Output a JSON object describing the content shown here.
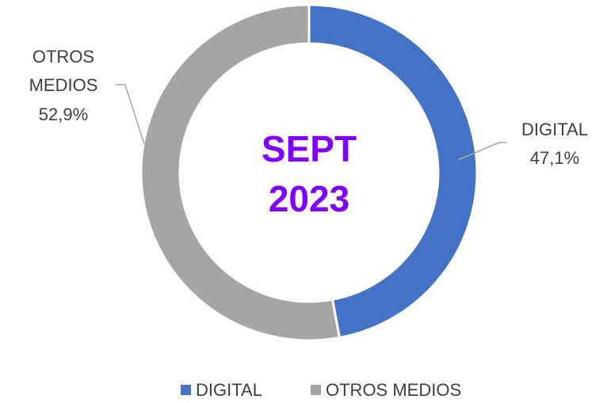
{
  "chart_data": {
    "type": "donut",
    "center_text": [
      "SEPT",
      "2023"
    ],
    "categories": [
      "DIGITAL",
      "OTROS MEDIOS"
    ],
    "values": [
      47.1,
      52.9
    ],
    "value_labels": [
      "47,1%",
      "52,9%"
    ],
    "colors": [
      "#4472c4",
      "#a5a5a5"
    ],
    "legend": "bottom"
  }
}
